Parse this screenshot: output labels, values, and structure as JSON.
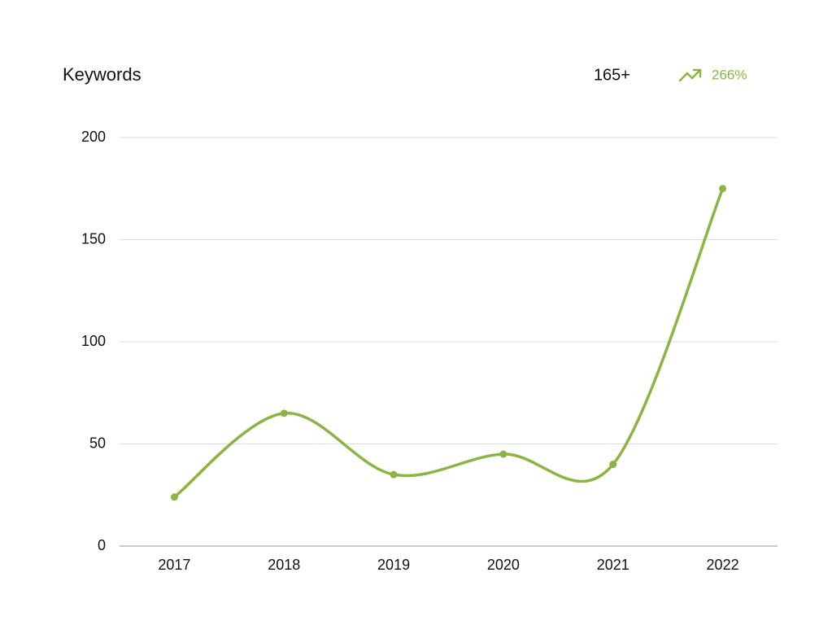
{
  "chart_data": {
    "type": "line",
    "title": "Keywords",
    "stat": "165+",
    "change": "266%",
    "categories": [
      "2017",
      "2018",
      "2019",
      "2020",
      "2021",
      "2022"
    ],
    "values": [
      24,
      65,
      35,
      45,
      40,
      175
    ],
    "color": "#8bb543",
    "ylim": [
      0,
      200
    ],
    "yticks": [
      0,
      50,
      100,
      150,
      200
    ],
    "grid": true,
    "smooth": true
  }
}
